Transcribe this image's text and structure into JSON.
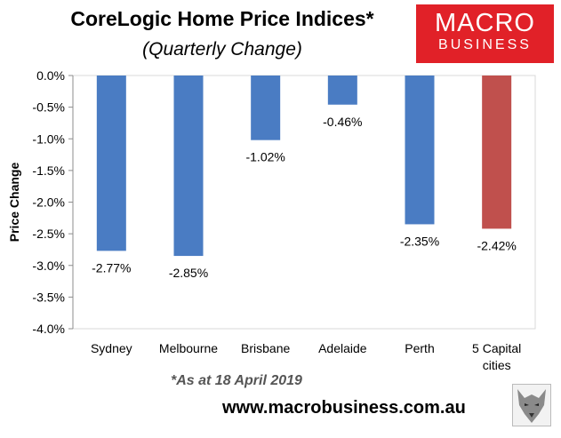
{
  "header": {
    "title": "CoreLogic Home Price Indices*",
    "subtitle": "(Quarterly Change)"
  },
  "logo": {
    "line1": "MACRO",
    "line2": "BUSINESS",
    "color": "#e12128"
  },
  "footer": {
    "note": "*As at 18 April 2019",
    "url": "www.macrobusiness.com.au",
    "wolf_icon": "wolf-icon"
  },
  "chart_data": {
    "type": "bar",
    "title": "CoreLogic Home Price Indices*",
    "subtitle": "(Quarterly Change)",
    "ylabel": "Price Change",
    "xlabel": "",
    "categories": [
      [
        "Sydney"
      ],
      [
        "Melbourne"
      ],
      [
        "Brisbane"
      ],
      [
        "Adelaide"
      ],
      [
        "Perth"
      ],
      [
        "5 Capital",
        "cities"
      ]
    ],
    "values": [
      -2.77,
      -2.85,
      -1.02,
      -0.46,
      -2.35,
      -2.42
    ],
    "data_labels": [
      "-2.77%",
      "-2.85%",
      "-1.02%",
      "-0.46%",
      "-2.35%",
      "-2.42%"
    ],
    "colors": [
      "#4a7cc3",
      "#4a7cc3",
      "#4a7cc3",
      "#4a7cc3",
      "#4a7cc3",
      "#c0504d"
    ],
    "ylim": [
      -4.0,
      0.0
    ],
    "yticks": [
      0.0,
      -0.5,
      -1.0,
      -1.5,
      -2.0,
      -2.5,
      -3.0,
      -3.5,
      -4.0
    ],
    "ytick_labels": [
      "0.0%",
      "-0.5%",
      "-1.0%",
      "-1.5%",
      "-2.0%",
      "-2.5%",
      "-3.0%",
      "-3.5%",
      "-4.0%"
    ],
    "grid": false,
    "legend": "none"
  }
}
